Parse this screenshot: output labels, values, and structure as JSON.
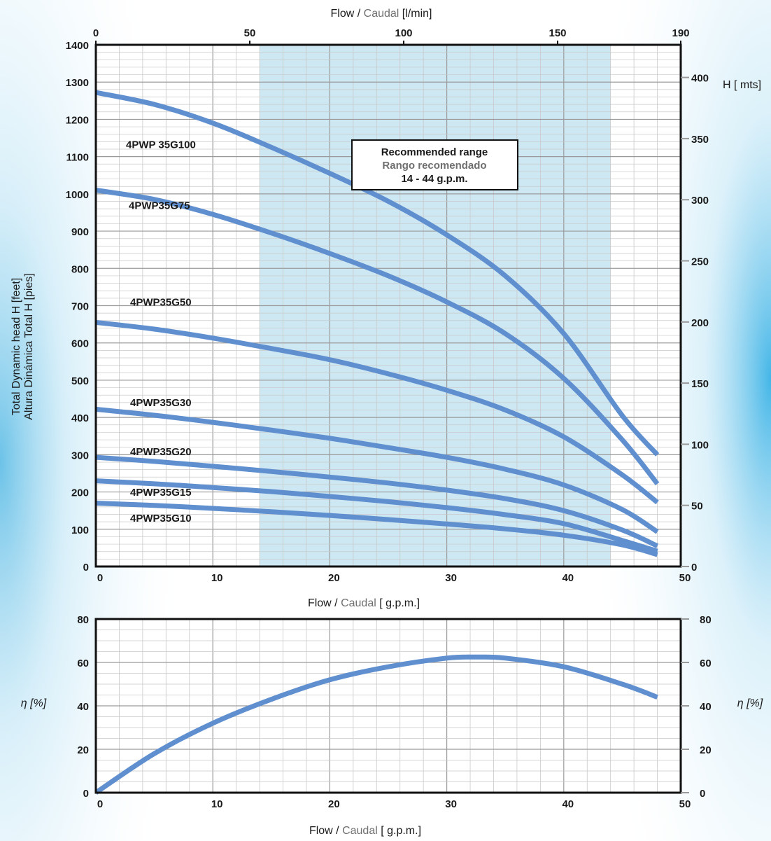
{
  "colors": {
    "curve": "#5f8fcf",
    "recommended_fill": "#cde8f3",
    "grid_minor": "#c9c9c9",
    "grid_major": "#9a9a9a",
    "frame": "#111111",
    "muted_text": "#6f6f6f",
    "background_glow": "#39b6e6"
  },
  "chart_data": [
    {
      "type": "line",
      "xlabel": {
        "primary": "Flow / ",
        "secondary": "Caudal",
        "unit": " [ g.p.m.]"
      },
      "x2label": {
        "primary": "Flow / ",
        "secondary": "Caudal",
        "unit": " [l/min]"
      },
      "ylabel": [
        "Total Dynamic head H [feet]",
        "Altura Dinámica Total H [pies]"
      ],
      "y2label": "H [ mts]",
      "xlim": [
        0,
        50
      ],
      "ylim": [
        0,
        1400
      ],
      "x2lim": [
        0,
        190
      ],
      "y2lim": [
        0,
        426.7
      ],
      "x_ticks": [
        0,
        10,
        20,
        30,
        40,
        50
      ],
      "y_ticks": [
        0,
        100,
        200,
        300,
        400,
        500,
        600,
        700,
        800,
        900,
        1000,
        1100,
        1200,
        1300,
        1400
      ],
      "x2_ticks": [
        0,
        50,
        100,
        150,
        190
      ],
      "y2_ticks": [
        0,
        50,
        100,
        150,
        200,
        250,
        300,
        350,
        400
      ],
      "grid": true,
      "recommended_range": {
        "x": [
          14,
          44
        ],
        "lines": [
          "Recommended range",
          "Rango recomendado",
          "14 - 44 g.p.m."
        ]
      },
      "series": [
        {
          "name": "4PWP 35G100",
          "x": [
            0,
            5,
            10,
            15,
            20,
            25,
            30,
            35,
            40,
            45,
            48
          ],
          "y": [
            1272,
            1240,
            1190,
            1125,
            1055,
            980,
            890,
            780,
            625,
            405,
            300
          ]
        },
        {
          "name": "4PWP35G75",
          "x": [
            0,
            5,
            10,
            15,
            20,
            25,
            30,
            35,
            40,
            45,
            48
          ],
          "y": [
            1010,
            985,
            945,
            895,
            840,
            780,
            710,
            625,
            505,
            340,
            222
          ]
        },
        {
          "name": "4PWP35G50",
          "x": [
            0,
            5,
            10,
            15,
            20,
            25,
            30,
            35,
            40,
            45,
            48
          ],
          "y": [
            655,
            637,
            613,
            585,
            555,
            517,
            473,
            420,
            348,
            246,
            172
          ]
        },
        {
          "name": "4PWP35G30",
          "x": [
            0,
            5,
            10,
            15,
            20,
            25,
            30,
            35,
            40,
            45,
            48
          ],
          "y": [
            422,
            406,
            387,
            366,
            344,
            319,
            293,
            261,
            219,
            153,
            93
          ]
        },
        {
          "name": "4PWP35G20",
          "x": [
            0,
            5,
            10,
            15,
            20,
            25,
            30,
            35,
            40,
            45,
            48
          ],
          "y": [
            293,
            282,
            269,
            255,
            240,
            224,
            205,
            182,
            150,
            98,
            55
          ]
        },
        {
          "name": "4PWP35G15",
          "x": [
            0,
            5,
            10,
            15,
            20,
            25,
            30,
            35,
            40,
            45,
            48
          ],
          "y": [
            230,
            222,
            212,
            201,
            188,
            174,
            158,
            139,
            115,
            70,
            41
          ]
        },
        {
          "name": "4PWP35G10",
          "x": [
            0,
            5,
            10,
            15,
            20,
            25,
            30,
            35,
            40,
            45,
            48
          ],
          "y": [
            170,
            164,
            156,
            147,
            137,
            126,
            114,
            101,
            84,
            58,
            32
          ]
        }
      ]
    },
    {
      "type": "line",
      "xlabel": {
        "primary": "Flow / ",
        "secondary": "Caudal",
        "unit": " [ g.p.m.]"
      },
      "ylabel": "η [%]",
      "y2label": "η [%]",
      "xlim": [
        0,
        50
      ],
      "ylim": [
        0,
        80
      ],
      "x_ticks": [
        0,
        10,
        20,
        30,
        40,
        50
      ],
      "y_ticks": [
        0,
        20,
        40,
        60,
        80
      ],
      "grid": true,
      "series": [
        {
          "name": "",
          "x": [
            0,
            5,
            10,
            15,
            20,
            25,
            30,
            32.5,
            35,
            40,
            45,
            48
          ],
          "y": [
            0,
            18,
            32,
            43,
            52,
            58,
            62,
            62.5,
            62,
            58,
            50,
            44
          ]
        }
      ]
    }
  ]
}
